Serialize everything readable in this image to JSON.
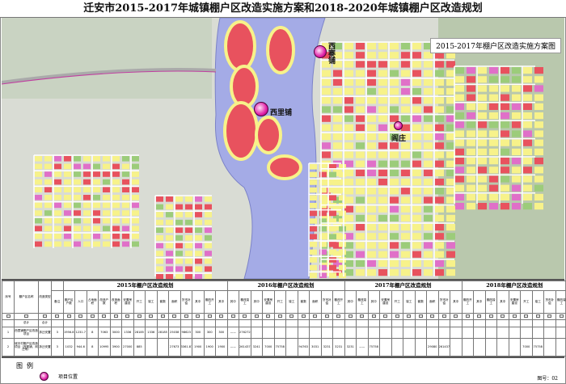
{
  "title": "迁安市2015-2017年城镇棚户区改造实施方案和2018-2020年城镇棚户区改造规划",
  "subtitle": "2015-2017年棚户区改造实施方案图",
  "map": {
    "colors": {
      "river": "#a4abe6",
      "residential": "#f7f28a",
      "commercial": "#e8525e",
      "public": "#e070c8",
      "green": "#9ccc7a",
      "base": "#dcdcdc",
      "project": "#e020a8"
    },
    "project_sites": [
      {
        "label": "西寨铺"
      },
      {
        "label": "西里铺"
      },
      {
        "label": "阎庄"
      }
    ]
  },
  "table": {
    "groups": [
      "",
      "2015年棚户区改造规划",
      "2016年棚户区改造规划",
      "2017年棚户区改造规划",
      "2018年棚户区改造规划"
    ],
    "left_headers": [
      "序号",
      "棚户区名称",
      "改造类型"
    ],
    "subheaders": [
      "备注",
      "棚户区户数",
      "人口",
      "占地面积",
      "改造户数",
      "改造面积",
      "安置房建设",
      "开工",
      "竣工",
      "套数",
      "面积",
      "货币补偿",
      "其中",
      "棚改开工",
      "其中",
      "其中",
      "棚改竣工",
      "其中",
      "安置房建设",
      "开工",
      "竣工",
      "套数",
      "面积",
      "货币补偿",
      "棚改开工",
      "其中",
      "棚改竣工",
      "其中",
      "安置房建设",
      "开工",
      "竣工",
      "套数",
      "面积",
      "货币补偿",
      "其中",
      "棚改开工",
      "其中",
      "棚改竣工",
      "其中",
      "安置房建设",
      "开工",
      "竣工",
      "货币补偿",
      "棚改竣工"
    ],
    "rows": [
      {
        "no": "",
        "name": "总计",
        "type": "合计",
        "cells": []
      },
      {
        "no": "1",
        "name": "西里铺棚户区改造项目",
        "type": "拆迁安置",
        "cells": [
          "3",
          "1956.8",
          "1231.7",
          "8",
          "7063",
          "3000",
          "1336",
          "28185",
          "1336",
          "28185",
          "25038",
          "98623",
          "300",
          "300",
          "300",
          "——",
          "276272"
        ]
      },
      {
        "no": "2",
        "name": "城中村棚户区改造项目（西寨铺、阎庄等）",
        "type": "拆迁安置",
        "cells": [
          "3",
          "1032",
          "944.6",
          "8",
          "10995",
          "3900",
          "27000",
          "885",
          "",
          "",
          "27673",
          "3361.87",
          "1900",
          "1900",
          "1900",
          "——",
          "2614377",
          "3241",
          "7000",
          "75758",
          "",
          "94763",
          "3031",
          "3231",
          "3231",
          "3231",
          "——",
          "75758",
          "",
          "",
          "",
          "",
          "29080",
          "2614377",
          "",
          "",
          "",
          "",
          "",
          "",
          "7000",
          "75758",
          "",
          ""
        ]
      }
    ],
    "legend_title": "图例",
    "legend_item": "项目位置",
    "map_number": "图号：02"
  }
}
